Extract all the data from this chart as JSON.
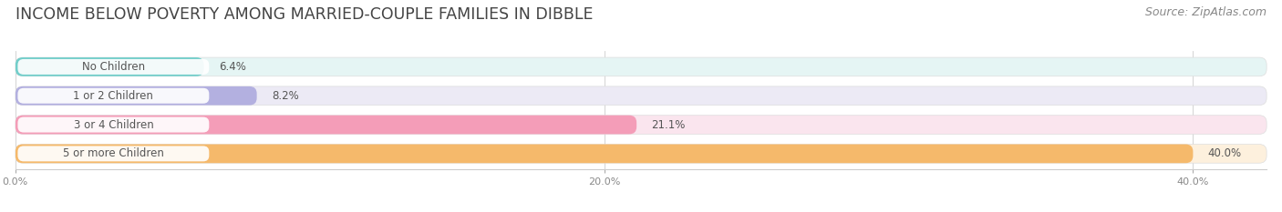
{
  "title": "INCOME BELOW POVERTY AMONG MARRIED-COUPLE FAMILIES IN DIBBLE",
  "source": "Source: ZipAtlas.com",
  "categories": [
    "No Children",
    "1 or 2 Children",
    "3 or 4 Children",
    "5 or more Children"
  ],
  "values": [
    6.4,
    8.2,
    21.1,
    40.0
  ],
  "bar_colors": [
    "#72ceca",
    "#b3b0e0",
    "#f49db8",
    "#f5b96b"
  ],
  "bar_bg_colors": [
    "#e5f5f4",
    "#eceaf5",
    "#fae5ee",
    "#fdf0dd"
  ],
  "xlim_max": 42.5,
  "xtick_vals": [
    0.0,
    20.0,
    40.0
  ],
  "xtick_labels": [
    "0.0%",
    "20.0%",
    "40.0%"
  ],
  "title_fontsize": 12.5,
  "source_fontsize": 9,
  "label_fontsize": 8.5,
  "value_fontsize": 8.5,
  "background_color": "#ffffff",
  "bar_height": 0.65,
  "label_box_color": "#ffffff",
  "label_text_color": "#555555",
  "value_text_color": "#555555",
  "grid_color": "#cccccc",
  "title_color": "#444444",
  "source_color": "#888888"
}
